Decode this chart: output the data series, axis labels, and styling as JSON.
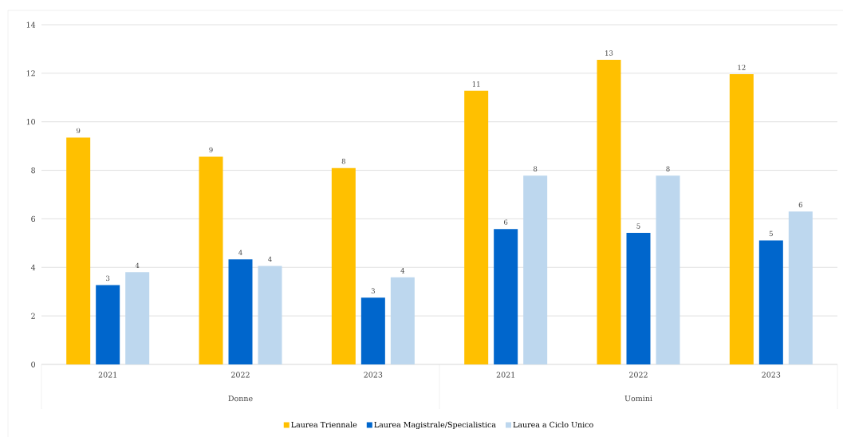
{
  "chart_data": {
    "type": "bar",
    "categories": [
      "2021",
      "2022",
      "2023",
      "2021",
      "2022",
      "2023"
    ],
    "annotations": [
      "Donne",
      "Uomini"
    ],
    "series": [
      {
        "name": "Laurea Triennale",
        "color": "#ffc000",
        "values": [
          9.35,
          8.56,
          8.09,
          11.28,
          12.55,
          11.96
        ],
        "value_labels": [
          "9",
          "9",
          "8",
          "11",
          "13",
          "12"
        ]
      },
      {
        "name": "Laurea Magistrale/Specialistica",
        "color": "#0066cc",
        "values": [
          3.27,
          4.33,
          2.75,
          5.58,
          5.42,
          5.11
        ],
        "value_labels": [
          "3",
          "4",
          "3",
          "6",
          "5",
          "5"
        ]
      },
      {
        "name": "Laurea a Ciclo Unico",
        "color": "#bdd7ee",
        "values": [
          3.8,
          4.06,
          3.59,
          7.78,
          7.78,
          6.3
        ],
        "value_labels": [
          "4",
          "4",
          "4",
          "8",
          "8",
          "6"
        ]
      }
    ],
    "ylim": [
      0,
      14
    ],
    "yticks": [
      0,
      2,
      4,
      6,
      8,
      10,
      12,
      14
    ],
    "grid": "y",
    "legend": "bottom"
  }
}
